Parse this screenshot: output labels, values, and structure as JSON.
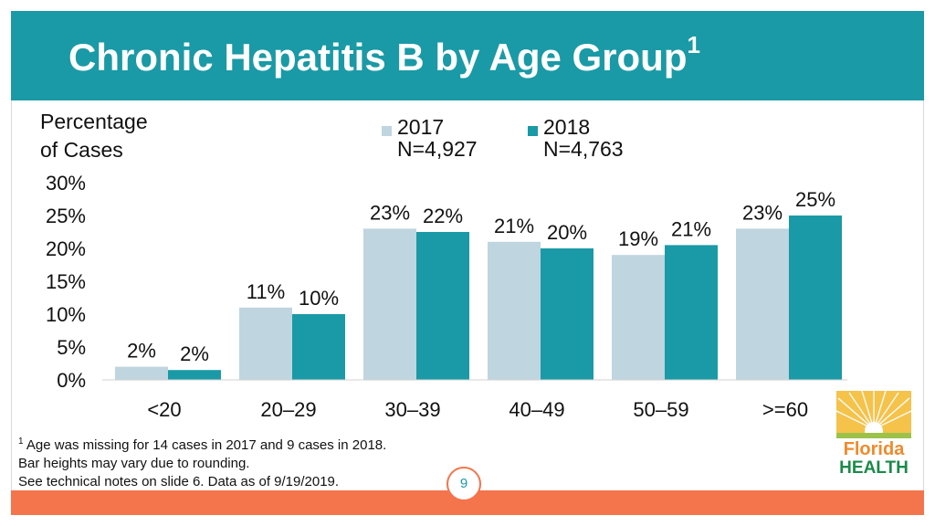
{
  "title": "Chronic Hepatitis B by Age Group",
  "title_superscript": "1",
  "colors": {
    "header": "#1a9aa6",
    "footer": "#f4744c",
    "series_2017": "#bfd5df",
    "series_2018": "#1a9aa6"
  },
  "legend": [
    {
      "name": "2017",
      "n": "N=4,927"
    },
    {
      "name": "2018",
      "n": "N=4,763"
    }
  ],
  "chart_data": {
    "type": "bar",
    "title": "Chronic Hepatitis B by Age Group",
    "ylabel": "Percentage\nof Cases",
    "xlabel": "",
    "ylim": [
      0,
      30
    ],
    "yticks": [
      0,
      5,
      10,
      15,
      20,
      25,
      30
    ],
    "ytick_labels": [
      "0%",
      "5%",
      "10%",
      "15%",
      "20%",
      "25%",
      "30%"
    ],
    "categories": [
      "<20",
      "20–29",
      "30–39",
      "40–49",
      "50–59",
      ">=60"
    ],
    "series": [
      {
        "name": "2017",
        "values": [
          2,
          11,
          23,
          21,
          19,
          23
        ],
        "labels": [
          "2%",
          "11%",
          "23%",
          "21%",
          "19%",
          "23%"
        ]
      },
      {
        "name": "2018",
        "values": [
          1.5,
          10,
          22.5,
          20,
          20.5,
          25
        ],
        "labels": [
          "2%",
          "10%",
          "22%",
          "20%",
          "21%",
          "25%"
        ]
      }
    ],
    "grid": false,
    "legend_position": "top-right"
  },
  "footnote": {
    "marker": "1",
    "lines": [
      "Age was missing for 14 cases in 2017 and 9 cases in 2018.",
      "Bar heights may vary due to rounding.",
      "See technical notes on slide 6. Data as of 9/19/2019."
    ]
  },
  "page_number": "9",
  "logo": {
    "line1": "Florida",
    "line2": "HEALTH"
  }
}
